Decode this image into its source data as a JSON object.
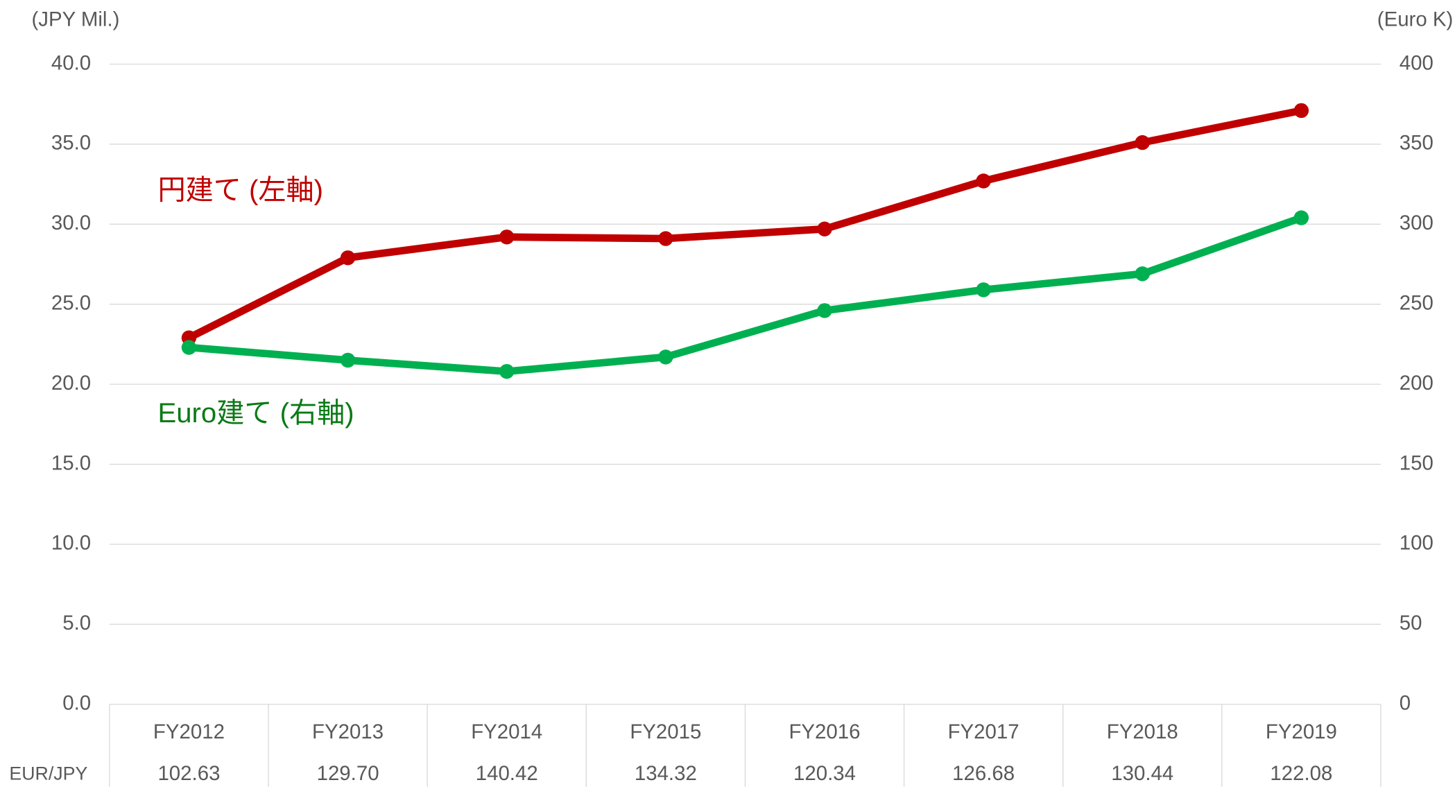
{
  "chart_data": {
    "type": "line",
    "categories": [
      "FY2012",
      "FY2013",
      "FY2014",
      "FY2015",
      "FY2016",
      "FY2017",
      "FY2018",
      "FY2019"
    ],
    "ylabel": "(JPY Mil.)",
    "y2label": "(Euro K)",
    "ylim": [
      0,
      40
    ],
    "yticks": [
      {
        "value": 0,
        "label": "0.0"
      },
      {
        "value": 5,
        "label": "5.0"
      },
      {
        "value": 10,
        "label": "10.0"
      },
      {
        "value": 15,
        "label": "15.0"
      },
      {
        "value": 20,
        "label": "20.0"
      },
      {
        "value": 25,
        "label": "25.0"
      },
      {
        "value": 30,
        "label": "30.0"
      },
      {
        "value": 35,
        "label": "35.0"
      },
      {
        "value": 40,
        "label": "40.0"
      }
    ],
    "y2lim": [
      0,
      400
    ],
    "y2ticks": [
      0,
      50,
      100,
      150,
      200,
      250,
      300,
      350,
      400
    ],
    "grid": true,
    "series": [
      {
        "name": "円建て (左軸)",
        "color": "#c00000",
        "values": [
          22.9,
          27.9,
          29.2,
          29.1,
          29.7,
          32.7,
          35.1,
          37.1
        ]
      },
      {
        "name": "Euro建て (右軸)",
        "color": "#00b050",
        "label_color": "#0b7a16",
        "axis": "y2",
        "values": [
          223,
          215,
          208,
          217,
          246,
          259,
          269,
          304
        ]
      }
    ],
    "table": {
      "label": "EUR/JPY",
      "values": [
        "102.63",
        "129.70",
        "140.42",
        "134.32",
        "120.34",
        "126.68",
        "130.44",
        "122.08"
      ]
    }
  }
}
